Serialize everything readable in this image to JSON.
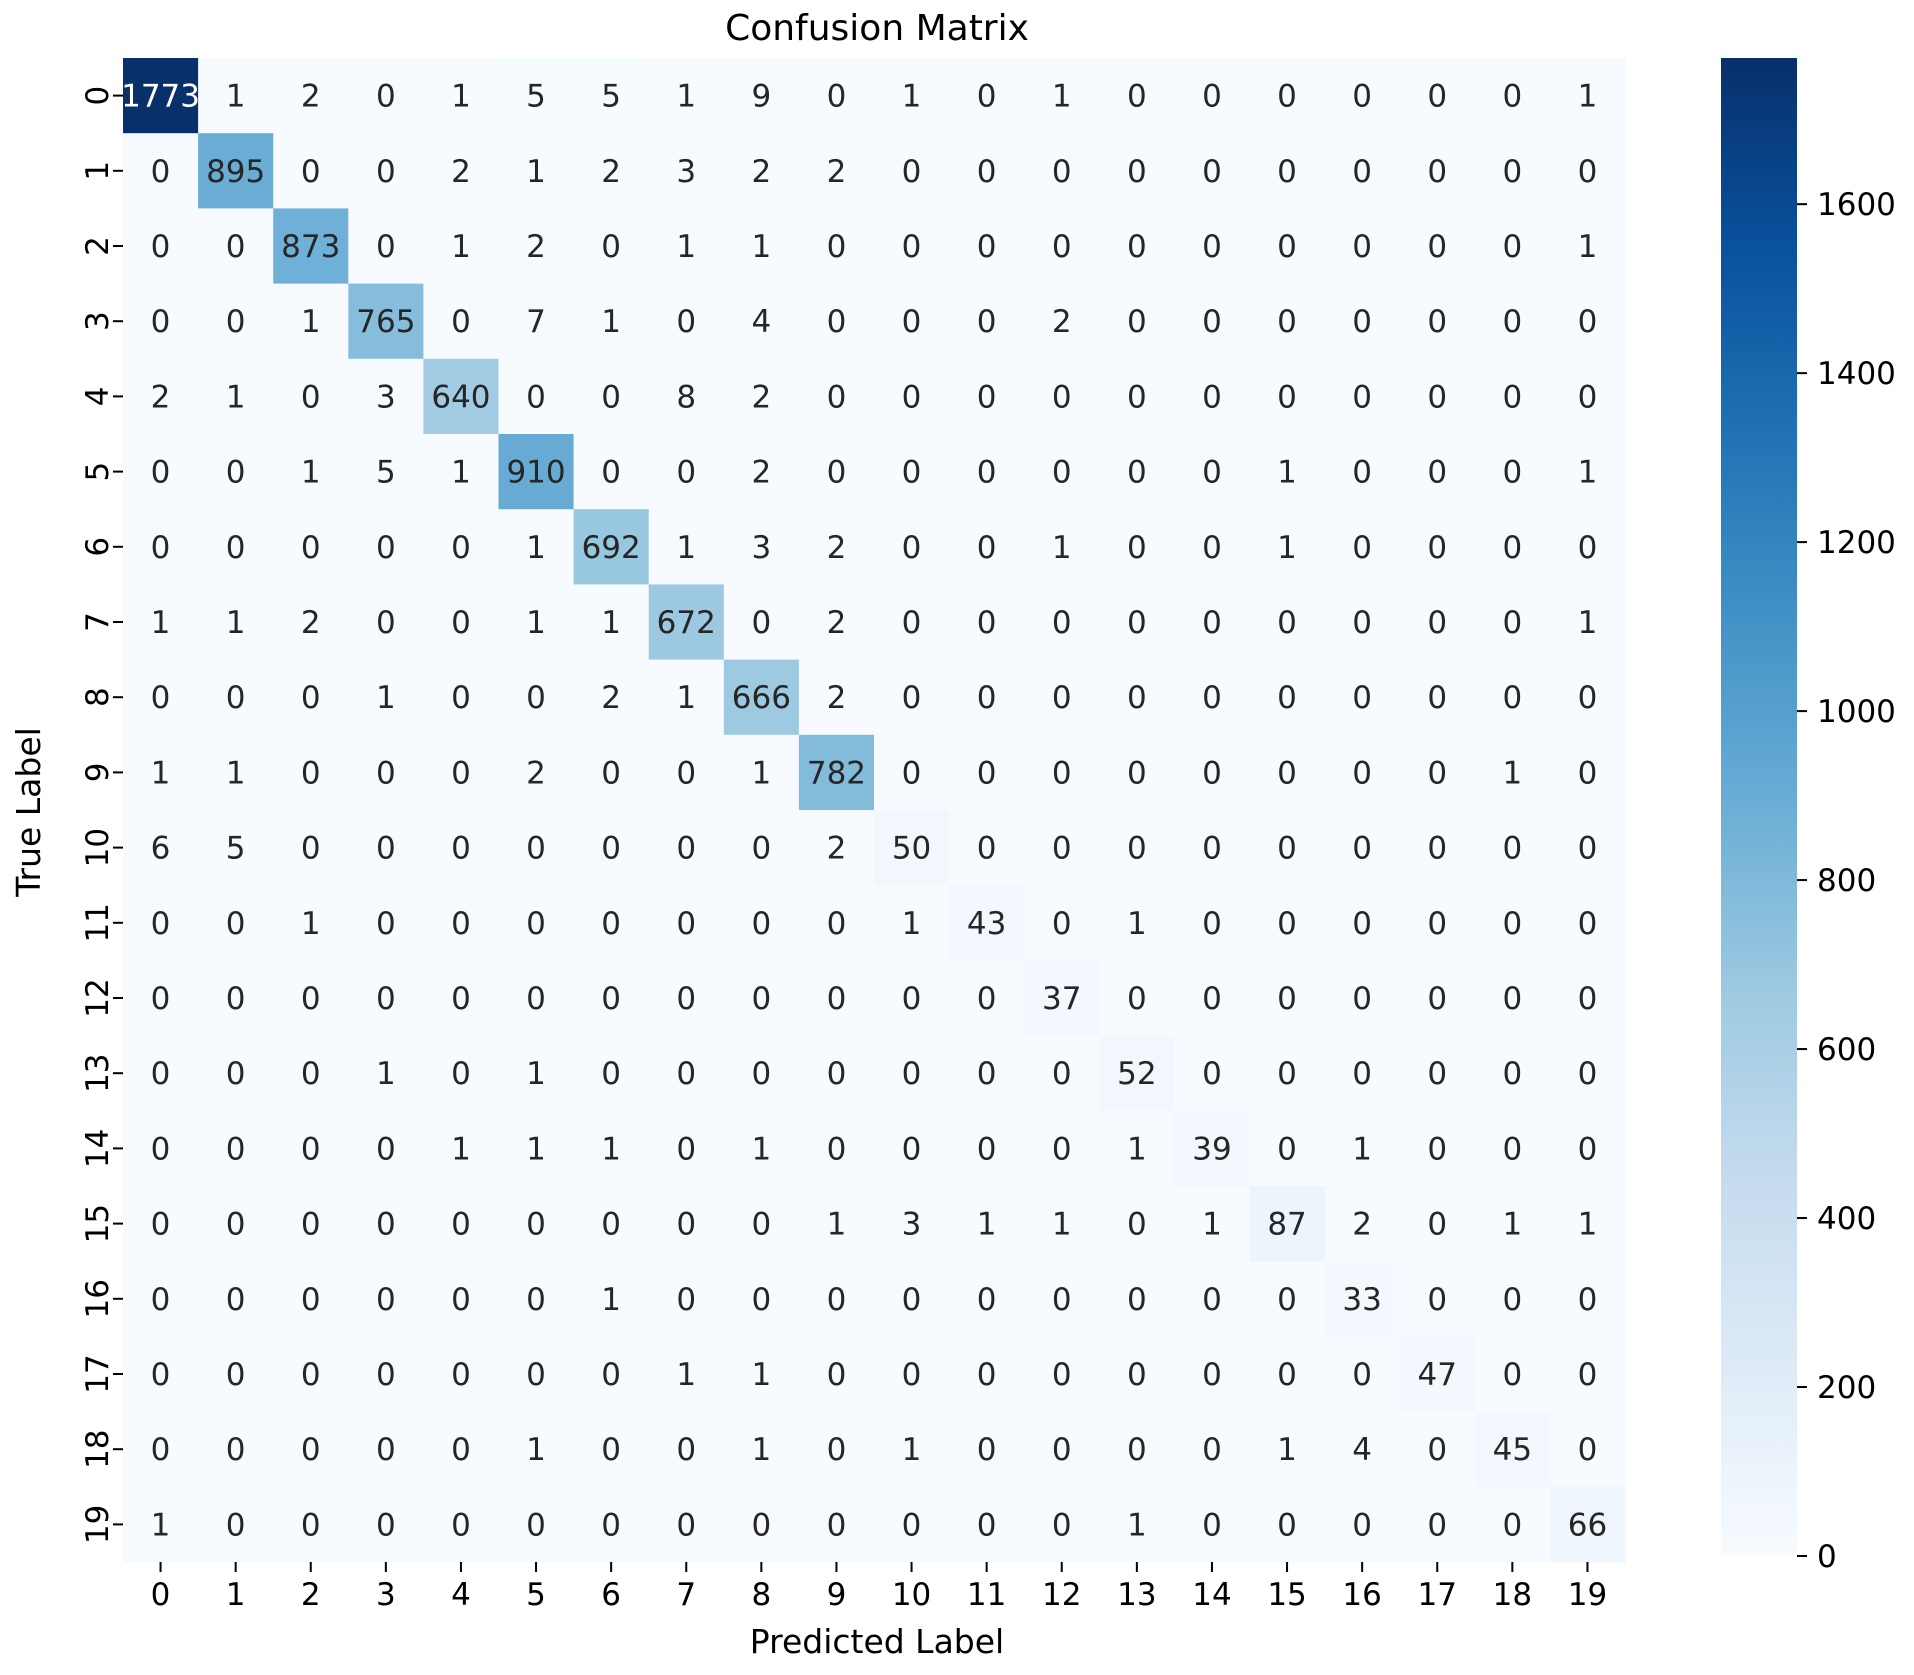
{
  "chart_data": {
    "type": "heatmap",
    "title": "Confusion Matrix",
    "xlabel": "Predicted Label",
    "ylabel": "True Label",
    "x_categories": [
      "0",
      "1",
      "2",
      "3",
      "4",
      "5",
      "6",
      "7",
      "8",
      "9",
      "10",
      "11",
      "12",
      "13",
      "14",
      "15",
      "16",
      "17",
      "18",
      "19"
    ],
    "y_categories": [
      "0",
      "1",
      "2",
      "3",
      "4",
      "5",
      "6",
      "7",
      "8",
      "9",
      "10",
      "11",
      "12",
      "13",
      "14",
      "15",
      "16",
      "17",
      "18",
      "19"
    ],
    "values": [
      [
        1773,
        1,
        2,
        0,
        1,
        5,
        5,
        1,
        9,
        0,
        1,
        0,
        1,
        0,
        0,
        0,
        0,
        0,
        0,
        1
      ],
      [
        0,
        895,
        0,
        0,
        2,
        1,
        2,
        3,
        2,
        2,
        0,
        0,
        0,
        0,
        0,
        0,
        0,
        0,
        0,
        0
      ],
      [
        0,
        0,
        873,
        0,
        1,
        2,
        0,
        1,
        1,
        0,
        0,
        0,
        0,
        0,
        0,
        0,
        0,
        0,
        0,
        1
      ],
      [
        0,
        0,
        1,
        765,
        0,
        7,
        1,
        0,
        4,
        0,
        0,
        0,
        2,
        0,
        0,
        0,
        0,
        0,
        0,
        0
      ],
      [
        2,
        1,
        0,
        3,
        640,
        0,
        0,
        8,
        2,
        0,
        0,
        0,
        0,
        0,
        0,
        0,
        0,
        0,
        0,
        0
      ],
      [
        0,
        0,
        1,
        5,
        1,
        910,
        0,
        0,
        2,
        0,
        0,
        0,
        0,
        0,
        0,
        1,
        0,
        0,
        0,
        1
      ],
      [
        0,
        0,
        0,
        0,
        0,
        1,
        692,
        1,
        3,
        2,
        0,
        0,
        1,
        0,
        0,
        1,
        0,
        0,
        0,
        0
      ],
      [
        1,
        1,
        2,
        0,
        0,
        1,
        1,
        672,
        0,
        2,
        0,
        0,
        0,
        0,
        0,
        0,
        0,
        0,
        0,
        1
      ],
      [
        0,
        0,
        0,
        1,
        0,
        0,
        2,
        1,
        666,
        2,
        0,
        0,
        0,
        0,
        0,
        0,
        0,
        0,
        0,
        0
      ],
      [
        1,
        1,
        0,
        0,
        0,
        2,
        0,
        0,
        1,
        782,
        0,
        0,
        0,
        0,
        0,
        0,
        0,
        0,
        1,
        0
      ],
      [
        6,
        5,
        0,
        0,
        0,
        0,
        0,
        0,
        0,
        2,
        50,
        0,
        0,
        0,
        0,
        0,
        0,
        0,
        0,
        0
      ],
      [
        0,
        0,
        1,
        0,
        0,
        0,
        0,
        0,
        0,
        0,
        1,
        43,
        0,
        1,
        0,
        0,
        0,
        0,
        0,
        0
      ],
      [
        0,
        0,
        0,
        0,
        0,
        0,
        0,
        0,
        0,
        0,
        0,
        0,
        37,
        0,
        0,
        0,
        0,
        0,
        0,
        0
      ],
      [
        0,
        0,
        0,
        1,
        0,
        1,
        0,
        0,
        0,
        0,
        0,
        0,
        0,
        52,
        0,
        0,
        0,
        0,
        0,
        0
      ],
      [
        0,
        0,
        0,
        0,
        1,
        1,
        1,
        0,
        1,
        0,
        0,
        0,
        0,
        1,
        39,
        0,
        1,
        0,
        0,
        0
      ],
      [
        0,
        0,
        0,
        0,
        0,
        0,
        0,
        0,
        0,
        1,
        3,
        1,
        1,
        0,
        1,
        87,
        2,
        0,
        1,
        1
      ],
      [
        0,
        0,
        0,
        0,
        0,
        0,
        1,
        0,
        0,
        0,
        0,
        0,
        0,
        0,
        0,
        0,
        33,
        0,
        0,
        0
      ],
      [
        0,
        0,
        0,
        0,
        0,
        0,
        0,
        1,
        1,
        0,
        0,
        0,
        0,
        0,
        0,
        0,
        0,
        47,
        0,
        0
      ],
      [
        0,
        0,
        0,
        0,
        0,
        1,
        0,
        0,
        1,
        0,
        1,
        0,
        0,
        0,
        0,
        1,
        4,
        0,
        45,
        0
      ],
      [
        1,
        0,
        0,
        0,
        0,
        0,
        0,
        0,
        0,
        0,
        0,
        0,
        0,
        1,
        0,
        0,
        0,
        0,
        0,
        66
      ]
    ],
    "colorbar": {
      "min": 0,
      "max": 1773,
      "ticks": [
        0,
        200,
        400,
        600,
        800,
        1000,
        1200,
        1400,
        1600
      ],
      "colormap": "Blues",
      "colors": [
        "#f7fbff",
        "#deebf7",
        "#c6dbef",
        "#9ecae1",
        "#6baed6",
        "#4292c6",
        "#2171b5",
        "#08519c",
        "#08306b"
      ]
    },
    "grid": false
  }
}
